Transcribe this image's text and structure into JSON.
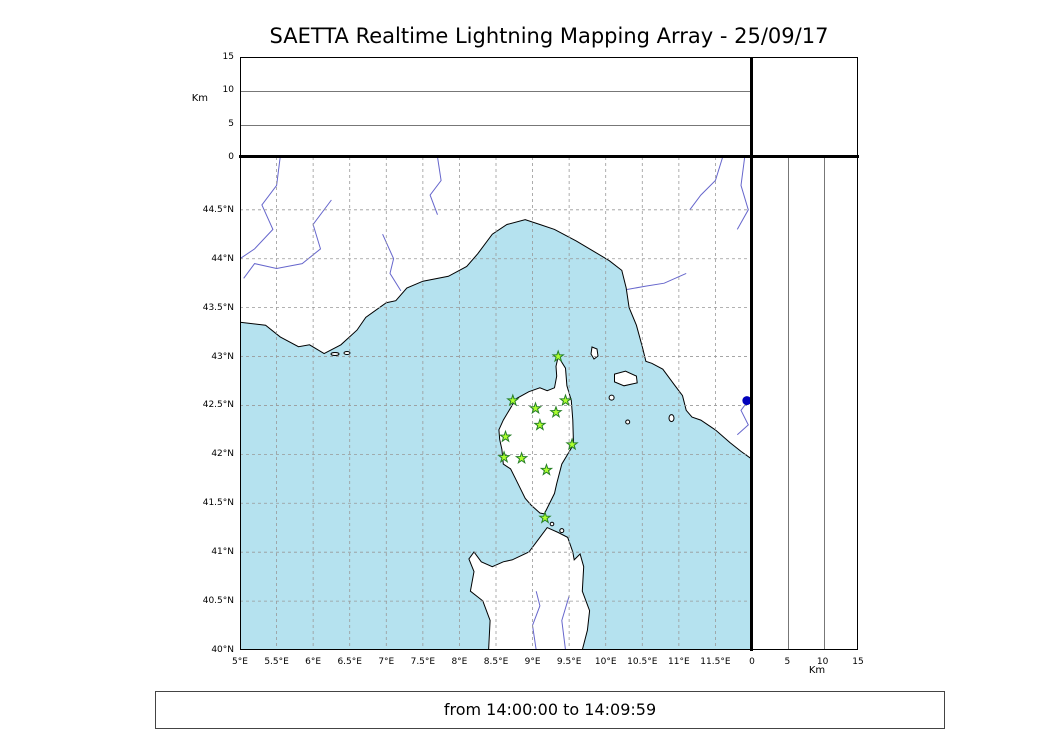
{
  "colors": {
    "sea": "#b5e2ef",
    "land": "#ffffff",
    "coast": "#000000",
    "river": "#6666cc",
    "grid": "#999999",
    "star_fill": "#adff2f",
    "star_stroke": "#267f26",
    "source": "#0000bb"
  },
  "chart_data": {
    "type": "scatter",
    "title": "SAETTA Realtime Lightning Mapping Array - 25/09/17",
    "time_window": "from 14:00:00 to 14:09:59",
    "map_panel": {
      "xlim": [
        5,
        12
      ],
      "ylim": [
        40,
        45.04
      ],
      "grid": "dashed, 0.5 degree spacing",
      "xticks": {
        "values": [
          5,
          5.5,
          6,
          6.5,
          7,
          7.5,
          8,
          8.5,
          9,
          9.5,
          10,
          10.5,
          11,
          11.5
        ],
        "labels": [
          "5°E",
          "5.5°E",
          "6°E",
          "6.5°E",
          "7°E",
          "7.5°E",
          "8°E",
          "8.5°E",
          "9°E",
          "9.5°E",
          "10°E",
          "10.5°E",
          "11°E",
          "11.5°E"
        ]
      },
      "yticks": {
        "values": [
          40,
          40.5,
          41,
          41.5,
          42,
          42.5,
          43,
          43.5,
          44,
          44.5
        ],
        "labels": [
          "40°N",
          "40.5°N",
          "41°N",
          "41.5°N",
          "42°N",
          "42.5°N",
          "43°N",
          "43.5°N",
          "44°N",
          "44.5°N"
        ]
      }
    },
    "altitude_panel_top": {
      "ylabel": "Km",
      "ylim": [
        0,
        15
      ],
      "yticks": {
        "values": [
          0,
          5,
          10,
          15
        ],
        "labels": [
          "0",
          "5",
          "10",
          "15"
        ]
      },
      "reference_lines_km": [
        5,
        10
      ],
      "points": []
    },
    "altitude_panel_right": {
      "xlabel": "Km",
      "xlim": [
        0,
        15
      ],
      "xticks": {
        "values": [
          0,
          5,
          10,
          15
        ],
        "labels": [
          "0",
          "5",
          "10",
          "15"
        ]
      },
      "reference_lines_km": [
        5,
        10
      ],
      "points": []
    },
    "stations": [
      {
        "lon": 9.35,
        "lat": 43.0
      },
      {
        "lon": 8.73,
        "lat": 42.55
      },
      {
        "lon": 9.04,
        "lat": 42.47
      },
      {
        "lon": 9.32,
        "lat": 42.43
      },
      {
        "lon": 9.45,
        "lat": 42.55
      },
      {
        "lon": 9.1,
        "lat": 42.3
      },
      {
        "lon": 8.63,
        "lat": 42.18
      },
      {
        "lon": 9.54,
        "lat": 42.1
      },
      {
        "lon": 8.61,
        "lat": 41.97
      },
      {
        "lon": 8.85,
        "lat": 41.96
      },
      {
        "lon": 9.19,
        "lat": 41.84
      },
      {
        "lon": 9.17,
        "lat": 41.35
      }
    ],
    "sources": [
      {
        "lon": 11.93,
        "lat": 42.55
      }
    ]
  }
}
